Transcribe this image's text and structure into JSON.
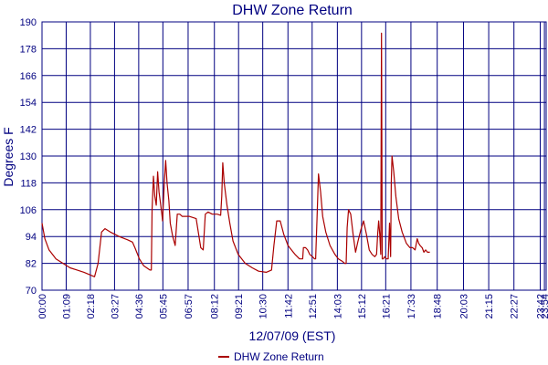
{
  "chart_data": {
    "type": "line",
    "title": "DHW Zone Return",
    "xlabel": "12/07/09 (EST)",
    "ylabel": "Degrees F",
    "ylim": [
      70,
      190
    ],
    "yticks": [
      "70",
      "82",
      "94",
      "106",
      "118",
      "130",
      "142",
      "154",
      "166",
      "178",
      "190"
    ],
    "xlim": [
      0,
      1439
    ],
    "xticks": [
      {
        "t": 0,
        "label": "00:00"
      },
      {
        "t": 69,
        "label": "01:09"
      },
      {
        "t": 138,
        "label": "02:18"
      },
      {
        "t": 207,
        "label": "03:27"
      },
      {
        "t": 276,
        "label": "04:36"
      },
      {
        "t": 345,
        "label": "05:45"
      },
      {
        "t": 417,
        "label": "06:57"
      },
      {
        "t": 492,
        "label": "08:12"
      },
      {
        "t": 561,
        "label": "09:21"
      },
      {
        "t": 630,
        "label": "10:30"
      },
      {
        "t": 702,
        "label": "11:42"
      },
      {
        "t": 771,
        "label": "12:51"
      },
      {
        "t": 843,
        "label": "14:03"
      },
      {
        "t": 912,
        "label": "15:12"
      },
      {
        "t": 981,
        "label": "16:21"
      },
      {
        "t": 1053,
        "label": "17:33"
      },
      {
        "t": 1128,
        "label": "18:48"
      },
      {
        "t": 1203,
        "label": "20:03"
      },
      {
        "t": 1275,
        "label": "21:15"
      },
      {
        "t": 1347,
        "label": "22:27"
      },
      {
        "t": 1422,
        "label": "23:42"
      },
      {
        "t": 1434,
        "label": "23:54"
      }
    ],
    "grid": true,
    "legend_position": "bottom-center",
    "series": [
      {
        "name": "DHW Zone Return",
        "color": "#aa0000",
        "points": [
          [
            0,
            100
          ],
          [
            8,
            93
          ],
          [
            20,
            88
          ],
          [
            40,
            84
          ],
          [
            60,
            82
          ],
          [
            80,
            80
          ],
          [
            100,
            79
          ],
          [
            120,
            78
          ],
          [
            150,
            76
          ],
          [
            160,
            82
          ],
          [
            170,
            96
          ],
          [
            180,
            97.5
          ],
          [
            195,
            96
          ],
          [
            220,
            94
          ],
          [
            245,
            92.5
          ],
          [
            258,
            91.5
          ],
          [
            265,
            89
          ],
          [
            278,
            84
          ],
          [
            290,
            81
          ],
          [
            308,
            79
          ],
          [
            312,
            79
          ],
          [
            314,
            106
          ],
          [
            318,
            121
          ],
          [
            322,
            112
          ],
          [
            326,
            108
          ],
          [
            330,
            123
          ],
          [
            334,
            114
          ],
          [
            338,
            109
          ],
          [
            342,
            104
          ],
          [
            344,
            101
          ],
          [
            349,
            118
          ],
          [
            353,
            128
          ],
          [
            357,
            118
          ],
          [
            362,
            110
          ],
          [
            366,
            100
          ],
          [
            373,
            94
          ],
          [
            380,
            90
          ],
          [
            386,
            104
          ],
          [
            393,
            104
          ],
          [
            400,
            103
          ],
          [
            420,
            103
          ],
          [
            440,
            102
          ],
          [
            447,
            95
          ],
          [
            453,
            89
          ],
          [
            460,
            88
          ],
          [
            466,
            104
          ],
          [
            474,
            105
          ],
          [
            486,
            104
          ],
          [
            500,
            104
          ],
          [
            510,
            103.5
          ],
          [
            513,
            112
          ],
          [
            516,
            127
          ],
          [
            520,
            118
          ],
          [
            528,
            108
          ],
          [
            536,
            100
          ],
          [
            545,
            92
          ],
          [
            560,
            86
          ],
          [
            580,
            82
          ],
          [
            600,
            80
          ],
          [
            618,
            78.5
          ],
          [
            640,
            78
          ],
          [
            655,
            79
          ],
          [
            662,
            90
          ],
          [
            670,
            101
          ],
          [
            680,
            101
          ],
          [
            690,
            95
          ],
          [
            702,
            90
          ],
          [
            712,
            88
          ],
          [
            722,
            86
          ],
          [
            735,
            84
          ],
          [
            744,
            84
          ],
          [
            746,
            89
          ],
          [
            752,
            89
          ],
          [
            758,
            88
          ],
          [
            764,
            86
          ],
          [
            772,
            85
          ],
          [
            778,
            84
          ],
          [
            781,
            84
          ],
          [
            785,
            102
          ],
          [
            789,
            122
          ],
          [
            795,
            114
          ],
          [
            801,
            103
          ],
          [
            810,
            96
          ],
          [
            822,
            90
          ],
          [
            836,
            86
          ],
          [
            846,
            84
          ],
          [
            856,
            83
          ],
          [
            864,
            82
          ],
          [
            868,
            82
          ],
          [
            871,
            98
          ],
          [
            875,
            106
          ],
          [
            881,
            104
          ],
          [
            888,
            95
          ],
          [
            895,
            87
          ],
          [
            902,
            92
          ],
          [
            910,
            97
          ],
          [
            918,
            101
          ],
          [
            926,
            95
          ],
          [
            934,
            88
          ],
          [
            942,
            86
          ],
          [
            950,
            85
          ],
          [
            955,
            86
          ],
          [
            958,
            95
          ],
          [
            961,
            101
          ],
          [
            964,
            95
          ],
          [
            967,
            86
          ],
          [
            969,
            185
          ],
          [
            971,
            84
          ],
          [
            974,
            84
          ],
          [
            978,
            85
          ],
          [
            983,
            84
          ],
          [
            988,
            84
          ],
          [
            992,
            100
          ],
          [
            995,
            85
          ],
          [
            997,
            118
          ],
          [
            999,
            130
          ],
          [
            1004,
            123
          ],
          [
            1010,
            112
          ],
          [
            1018,
            102
          ],
          [
            1028,
            96
          ],
          [
            1040,
            91
          ],
          [
            1050,
            89
          ],
          [
            1058,
            89
          ],
          [
            1065,
            88
          ],
          [
            1071,
            93
          ],
          [
            1075,
            91
          ],
          [
            1079,
            90
          ],
          [
            1085,
            89
          ],
          [
            1090,
            87
          ],
          [
            1095,
            88
          ],
          [
            1100,
            87
          ],
          [
            1107,
            87
          ]
        ]
      }
    ]
  }
}
